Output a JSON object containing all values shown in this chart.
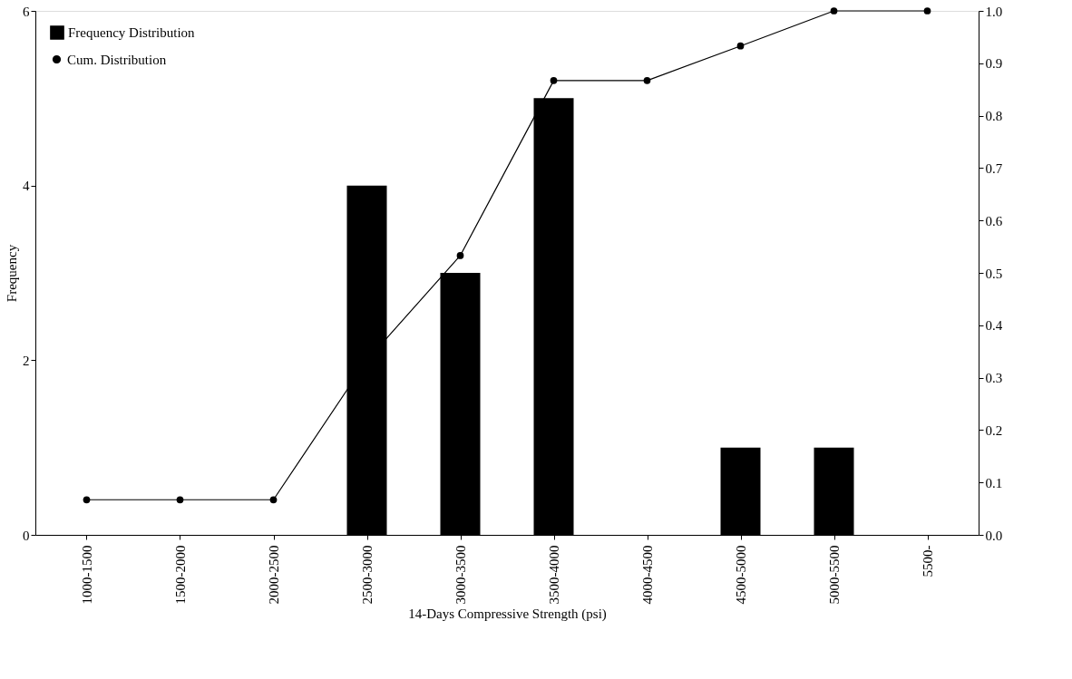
{
  "chart_data": {
    "type": "bar",
    "xlabel": "14-Days Compressive Strength (psi)",
    "ylabel": "Frequency",
    "categories": [
      "1000-1500",
      "1500-2000",
      "2000-2500",
      "2500-3000",
      "3000-3500",
      "3500-4000",
      "4000-4500",
      "4500-5000",
      "5000-5500",
      "5500-"
    ],
    "series": [
      {
        "name": "Frequency Distribution",
        "type": "bar",
        "color": "#000000",
        "values": [
          0,
          0,
          0,
          4,
          3,
          5,
          0,
          1,
          1,
          0
        ]
      },
      {
        "name": "Cum. Distribution",
        "type": "line",
        "axis": "y2",
        "color": "#000000",
        "marker": "circle",
        "values": [
          0.067,
          0.067,
          0.067,
          0.333,
          0.533,
          0.867,
          0.867,
          0.933,
          1.0,
          1.0
        ]
      }
    ],
    "ylim": [
      0,
      6
    ],
    "yticks": [
      0,
      2,
      4,
      6
    ],
    "y2lim": [
      0,
      1
    ],
    "y2ticks": [
      {
        "value": 0,
        "label": "0.0"
      },
      0.1,
      0.2,
      0.3,
      0.4,
      0.5,
      0.6,
      0.7,
      0.8,
      0.9,
      {
        "value": 1,
        "label": "1.0"
      }
    ],
    "legend": "top left",
    "grid": false
  }
}
